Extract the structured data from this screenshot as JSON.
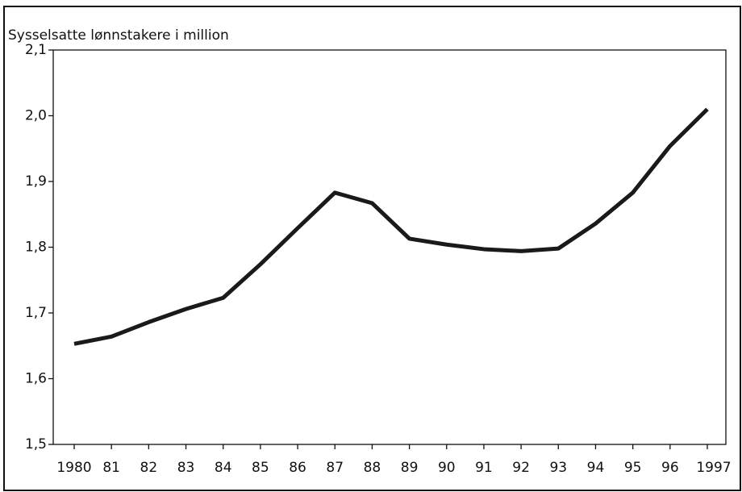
{
  "chart_data": {
    "type": "line",
    "y_label": "Sysselsatte lønnstakere i million",
    "categories": [
      "1980",
      "81",
      "82",
      "83",
      "84",
      "85",
      "86",
      "87",
      "88",
      "89",
      "90",
      "91",
      "92",
      "93",
      "94",
      "95",
      "96",
      "1997"
    ],
    "series": [
      {
        "color": "#1a1a1a",
        "values": [
          1.653,
          1.664,
          1.686,
          1.706,
          1.723,
          1.774,
          1.829,
          1.883,
          1.867,
          1.813,
          1.804,
          1.797,
          1.794,
          1.798,
          1.836,
          1.883,
          1.954,
          2.01
        ]
      }
    ],
    "ylim": [
      1.5,
      2.1
    ],
    "yticks": [
      {
        "value": 1.5,
        "label": "1,5"
      },
      {
        "value": 1.6,
        "label": "1,6"
      },
      {
        "value": 1.7,
        "label": "1,7"
      },
      {
        "value": 1.8,
        "label": "1,8"
      },
      {
        "value": 1.9,
        "label": "1,9"
      },
      {
        "value": 2.0,
        "label": "2,0"
      },
      {
        "value": 2.1,
        "label": "2,1"
      }
    ],
    "grid": false
  }
}
